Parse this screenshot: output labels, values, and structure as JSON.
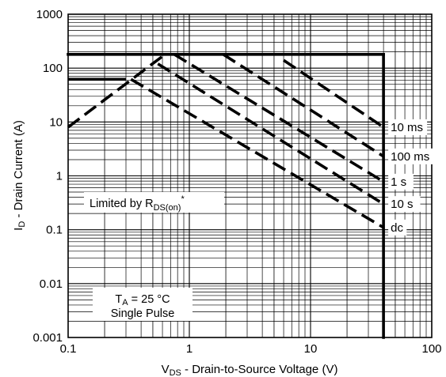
{
  "chart_data": {
    "type": "line",
    "title": "",
    "x_axis": {
      "scale": "log",
      "range": [
        0.1,
        100
      ],
      "tick_values": [
        0.1,
        1,
        10,
        100
      ],
      "tick_labels": [
        "0.1",
        "1",
        "10",
        "100"
      ],
      "label_main": "V",
      "label_sub": "DS",
      "label_rest": " - Drain-to-Source Voltage (V)"
    },
    "y_axis": {
      "scale": "log",
      "range": [
        0.001,
        1000
      ],
      "tick_values": [
        0.001,
        0.01,
        0.1,
        1,
        10,
        100,
        1000
      ],
      "tick_labels": [
        "0.001",
        "0.01",
        "0.1",
        "1",
        "10",
        "100",
        "1000"
      ],
      "label_main": "I",
      "label_sub": "D",
      "label_rest": " - Drain Current (A)"
    },
    "grid": true,
    "limits": {
      "current_limit_a": 180,
      "voltage_limit_v": 40,
      "line_style": "solid"
    },
    "series": [
      {
        "name": "10 ms",
        "style": "dashed",
        "x": [
          6,
          40
        ],
        "y": [
          140,
          8
        ]
      },
      {
        "name": "100 ms",
        "style": "dashed",
        "x": [
          1.9,
          40
        ],
        "y": [
          180,
          2.3
        ]
      },
      {
        "name": "1 s",
        "style": "dashed",
        "x": [
          0.75,
          40
        ],
        "y": [
          180,
          0.78
        ]
      },
      {
        "name": "10 s",
        "style": "dashed",
        "x": [
          0.55,
          40
        ],
        "y": [
          120,
          0.3
        ]
      },
      {
        "name": "dc",
        "style": "dashed",
        "x": [
          0.33,
          40
        ],
        "y": [
          62,
          0.11
        ]
      },
      {
        "name": "",
        "style": "dashed",
        "x": [
          0.1,
          0.62
        ],
        "y": [
          8,
          175
        ]
      },
      {
        "name": "",
        "style": "solid",
        "x": [
          0.1,
          0.3
        ],
        "y": [
          62,
          62
        ]
      }
    ],
    "annotations": {
      "rds_text": "Limited by R",
      "rds_sub": "DS(on)",
      "rds_sup": "*",
      "ta_main": "T",
      "ta_sub": "A",
      "ta_rest": " = 25 °C",
      "pulse": "Single Pulse"
    },
    "colors": {
      "lines": "#000000",
      "grid": "#000000",
      "background": "#ffffff"
    }
  }
}
